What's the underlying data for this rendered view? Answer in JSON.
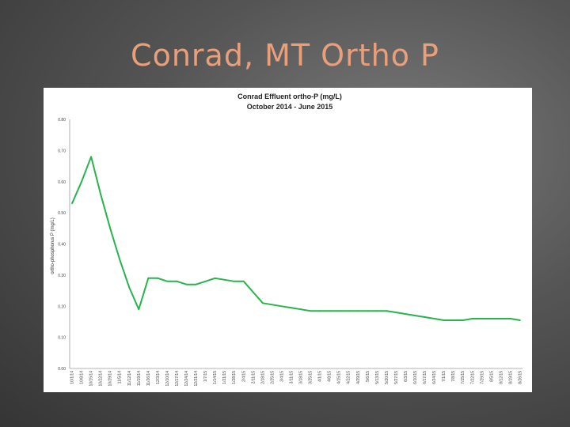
{
  "slide": {
    "title": "Conrad, MT Ortho P"
  },
  "colors": {
    "series_line": "#27b44b",
    "title_text": "#e9a07a"
  },
  "chart_data": {
    "type": "line",
    "title": "Conrad Effluent ortho-P (mg/L)",
    "subtitle": "October 2014 - June 2015",
    "xlabel": "",
    "ylabel": "ortho-phosphorus P (mg/L)",
    "ylim": [
      0,
      0.8
    ],
    "yticks": [
      "0.00",
      "0.10",
      "0.20",
      "0.30",
      "0.40",
      "0.50",
      "0.60",
      "0.70",
      "0.80"
    ],
    "grid": false,
    "legend": "none",
    "x": [
      "10/1/14",
      "10/8/14",
      "10/15/14",
      "10/22/14",
      "10/29/14",
      "11/5/14",
      "11/12/14",
      "11/19/14",
      "11/26/14",
      "12/3/14",
      "12/10/14",
      "12/17/14",
      "12/24/14",
      "12/31/14",
      "1/7/15",
      "1/14/15",
      "1/21/15",
      "1/28/15",
      "2/4/15",
      "2/11/15",
      "2/18/15",
      "2/25/15",
      "3/4/15",
      "3/11/15",
      "3/18/15",
      "3/25/15",
      "4/1/15",
      "4/8/15",
      "4/15/15",
      "4/22/15",
      "4/29/15",
      "5/6/15",
      "5/13/15",
      "5/20/15",
      "5/27/15",
      "6/3/15",
      "6/10/15",
      "6/17/15",
      "6/24/15",
      "7/1/15",
      "7/8/15",
      "7/15/15",
      "7/22/15",
      "7/29/15",
      "8/5/15",
      "8/12/15",
      "8/19/15",
      "8/26/15"
    ],
    "series": [
      {
        "values": [
          0.53,
          0.6,
          0.68,
          0.56,
          0.45,
          0.35,
          0.26,
          0.19,
          0.29,
          0.29,
          0.28,
          0.28,
          0.27,
          0.27,
          0.28,
          0.29,
          0.285,
          0.28,
          0.28,
          0.245,
          0.21,
          0.205,
          0.2,
          0.195,
          0.19,
          0.185,
          0.185,
          0.185,
          0.185,
          0.185,
          0.185,
          0.185,
          0.185,
          0.185,
          0.18,
          0.175,
          0.17,
          0.165,
          0.16,
          0.155,
          0.155,
          0.155,
          0.16,
          0.16,
          0.16,
          0.16,
          0.16,
          0.155
        ]
      }
    ]
  }
}
